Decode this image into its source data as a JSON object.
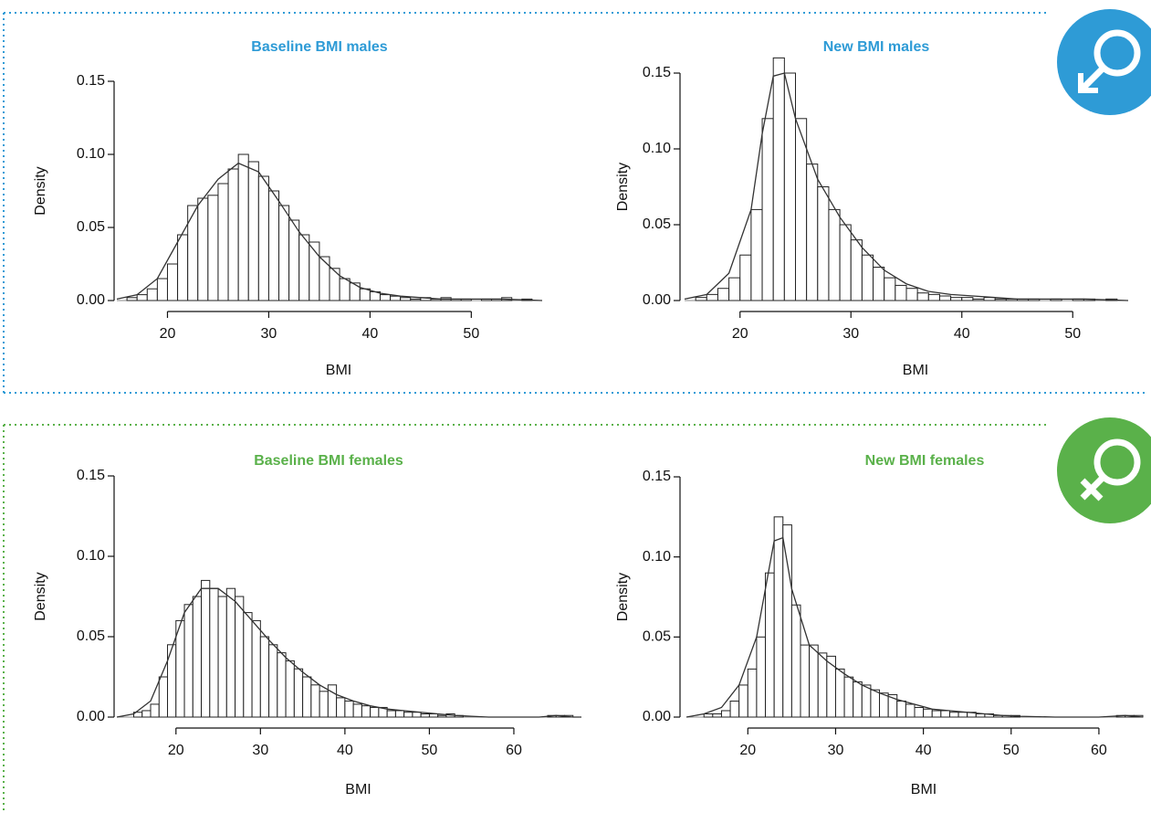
{
  "chart_data": [
    {
      "type": "histogram",
      "title": "Baseline BMI males",
      "title_color": "#2e9bd6",
      "xlabel": "BMI",
      "ylabel": "Density",
      "bins": [
        16,
        17,
        18,
        19,
        20,
        21,
        22,
        23,
        24,
        25,
        26,
        27,
        28,
        29,
        30,
        31,
        32,
        33,
        34,
        35,
        36,
        37,
        38,
        39,
        40,
        41,
        42,
        43,
        44,
        45,
        46,
        47,
        48,
        49,
        50,
        51,
        52,
        53,
        54,
        55,
        56
      ],
      "values": [
        0.002,
        0.004,
        0.008,
        0.015,
        0.025,
        0.045,
        0.065,
        0.07,
        0.072,
        0.08,
        0.09,
        0.1,
        0.095,
        0.085,
        0.075,
        0.065,
        0.055,
        0.045,
        0.04,
        0.03,
        0.022,
        0.015,
        0.012,
        0.008,
        0.006,
        0.004,
        0.003,
        0.002,
        0.001,
        0.002,
        0.001,
        0.002,
        0.001,
        0.001,
        0,
        0.001,
        0.001,
        0.002,
        0,
        0.001
      ],
      "curve": {
        "x": [
          15,
          17,
          19,
          21,
          23,
          25,
          27,
          29,
          31,
          33,
          35,
          37,
          39,
          41,
          43,
          45,
          47,
          49,
          51,
          53,
          55,
          57
        ],
        "values": [
          0.001,
          0.004,
          0.015,
          0.04,
          0.065,
          0.083,
          0.094,
          0.088,
          0.068,
          0.047,
          0.03,
          0.017,
          0.009,
          0.005,
          0.003,
          0.002,
          0.001,
          0.001,
          0.001,
          0.001,
          0.0005,
          0
        ]
      },
      "xlim": [
        15,
        57
      ],
      "ylim": [
        0,
        0.15
      ],
      "xticks": [
        20,
        30,
        40,
        50
      ],
      "yticks": [
        {
          "value": 0,
          "label": "0.00"
        },
        {
          "value": 0.05,
          "label": "0.05"
        },
        {
          "value": 0.1,
          "label": "0.10"
        },
        {
          "value": 0.15,
          "label": "0.15"
        }
      ]
    },
    {
      "type": "histogram",
      "title": "New BMI males",
      "title_color": "#2e9bd6",
      "xlabel": "BMI",
      "ylabel": "Density",
      "bins": [
        16,
        17,
        18,
        19,
        20,
        21,
        22,
        23,
        24,
        25,
        26,
        27,
        28,
        29,
        30,
        31,
        32,
        33,
        34,
        35,
        36,
        37,
        38,
        39,
        40,
        41,
        42,
        43,
        44,
        45,
        46,
        47,
        48,
        49,
        50,
        51,
        52,
        53,
        54
      ],
      "values": [
        0.002,
        0.004,
        0.008,
        0.015,
        0.03,
        0.06,
        0.12,
        0.16,
        0.15,
        0.12,
        0.09,
        0.075,
        0.06,
        0.05,
        0.04,
        0.03,
        0.022,
        0.015,
        0.01,
        0.008,
        0.005,
        0.004,
        0.003,
        0.002,
        0.002,
        0.001,
        0.002,
        0.001,
        0.001,
        0.001,
        0.001,
        0,
        0.001,
        0,
        0.001,
        0.001,
        0,
        0.001
      ],
      "curve": {
        "x": [
          15,
          17,
          19,
          21,
          22,
          23,
          24,
          25,
          27,
          29,
          31,
          33,
          35,
          37,
          39,
          41,
          43,
          45,
          47,
          49,
          51,
          53,
          55
        ],
        "values": [
          0.001,
          0.004,
          0.018,
          0.06,
          0.11,
          0.148,
          0.15,
          0.12,
          0.08,
          0.055,
          0.035,
          0.02,
          0.011,
          0.006,
          0.004,
          0.003,
          0.002,
          0.001,
          0.001,
          0.001,
          0.001,
          0.0005,
          0
        ]
      },
      "xlim": [
        15,
        55
      ],
      "ylim": [
        0,
        0.15
      ],
      "xticks": [
        20,
        30,
        40,
        50
      ],
      "yticks": [
        {
          "value": 0,
          "label": "0.00"
        },
        {
          "value": 0.05,
          "label": "0.05"
        },
        {
          "value": 0.1,
          "label": "0.10"
        },
        {
          "value": 0.15,
          "label": "0.15"
        }
      ]
    },
    {
      "type": "histogram",
      "title": "Baseline BMI females",
      "title_color": "#5ab14a",
      "xlabel": "BMI",
      "ylabel": "Density",
      "bins": [
        15,
        16,
        17,
        18,
        19,
        20,
        21,
        22,
        23,
        24,
        25,
        26,
        27,
        28,
        29,
        30,
        31,
        32,
        33,
        34,
        35,
        36,
        37,
        38,
        39,
        40,
        41,
        42,
        43,
        44,
        45,
        46,
        47,
        48,
        49,
        50,
        51,
        52,
        53,
        54,
        55,
        56,
        57,
        58,
        59,
        60,
        61,
        62,
        63,
        64,
        65,
        66,
        67
      ],
      "values": [
        0.003,
        0.004,
        0.008,
        0.025,
        0.045,
        0.06,
        0.07,
        0.075,
        0.085,
        0.08,
        0.075,
        0.08,
        0.075,
        0.065,
        0.06,
        0.05,
        0.045,
        0.04,
        0.035,
        0.03,
        0.025,
        0.02,
        0.016,
        0.02,
        0.012,
        0.01,
        0.008,
        0.007,
        0.006,
        0.006,
        0.004,
        0.004,
        0.003,
        0.003,
        0.002,
        0.002,
        0.001,
        0.002,
        0.001,
        0,
        0,
        0,
        0,
        0,
        0,
        0,
        0,
        0,
        0,
        0.001,
        0.001,
        0.001
      ],
      "curve": {
        "x": [
          13,
          15,
          17,
          19,
          21,
          23,
          25,
          27,
          29,
          31,
          33,
          35,
          37,
          39,
          41,
          43,
          45,
          47,
          49,
          51,
          53,
          55,
          57,
          59,
          61,
          63,
          65,
          67,
          68
        ],
        "values": [
          0,
          0.002,
          0.01,
          0.035,
          0.065,
          0.08,
          0.08,
          0.072,
          0.06,
          0.048,
          0.037,
          0.028,
          0.02,
          0.014,
          0.01,
          0.007,
          0.005,
          0.004,
          0.003,
          0.002,
          0.001,
          0.0005,
          0,
          0,
          0,
          0,
          0.001,
          0,
          0
        ]
      },
      "xlim": [
        13,
        68
      ],
      "ylim": [
        0,
        0.15
      ],
      "xticks": [
        20,
        30,
        40,
        50,
        60
      ],
      "yticks": [
        {
          "value": 0,
          "label": "0.00"
        },
        {
          "value": 0.05,
          "label": "0.05"
        },
        {
          "value": 0.1,
          "label": "0.10"
        },
        {
          "value": 0.15,
          "label": "0.15"
        }
      ]
    },
    {
      "type": "histogram",
      "title": "New BMI females",
      "title_color": "#5ab14a",
      "xlabel": "BMI",
      "ylabel": "Density",
      "bins": [
        15,
        16,
        17,
        18,
        19,
        20,
        21,
        22,
        23,
        24,
        25,
        26,
        27,
        28,
        29,
        30,
        31,
        32,
        33,
        34,
        35,
        36,
        37,
        38,
        39,
        40,
        41,
        42,
        43,
        44,
        45,
        46,
        47,
        48,
        49,
        50,
        51,
        52,
        53,
        54,
        55,
        56,
        57,
        58,
        59,
        60,
        61,
        62,
        63,
        64,
        65
      ],
      "values": [
        0.002,
        0.002,
        0.004,
        0.01,
        0.02,
        0.03,
        0.05,
        0.09,
        0.125,
        0.12,
        0.07,
        0.045,
        0.045,
        0.04,
        0.038,
        0.03,
        0.025,
        0.022,
        0.02,
        0.017,
        0.015,
        0.014,
        0.01,
        0.008,
        0.006,
        0.005,
        0.004,
        0.004,
        0.003,
        0.003,
        0.003,
        0.002,
        0.002,
        0.001,
        0.001,
        0.001,
        0,
        0,
        0,
        0,
        0,
        0,
        0,
        0,
        0,
        0,
        0,
        0.001,
        0.001,
        0.001
      ],
      "curve": {
        "x": [
          13,
          15,
          17,
          19,
          21,
          22,
          23,
          24,
          25,
          27,
          29,
          31,
          33,
          35,
          37,
          39,
          41,
          43,
          45,
          47,
          49,
          51,
          55,
          60,
          63,
          65
        ],
        "values": [
          0,
          0.002,
          0.006,
          0.02,
          0.05,
          0.08,
          0.11,
          0.112,
          0.08,
          0.045,
          0.035,
          0.027,
          0.02,
          0.015,
          0.011,
          0.008,
          0.005,
          0.004,
          0.003,
          0.002,
          0.001,
          0.0005,
          0,
          0,
          0.001,
          0
        ]
      },
      "xlim": [
        13,
        65
      ],
      "ylim": [
        0,
        0.15
      ],
      "xticks": [
        20,
        30,
        40,
        50,
        60
      ],
      "yticks": [
        {
          "value": 0,
          "label": "0.00"
        },
        {
          "value": 0.05,
          "label": "0.05"
        },
        {
          "value": 0.1,
          "label": "0.10"
        },
        {
          "value": 0.15,
          "label": "0.15"
        }
      ]
    }
  ]
}
